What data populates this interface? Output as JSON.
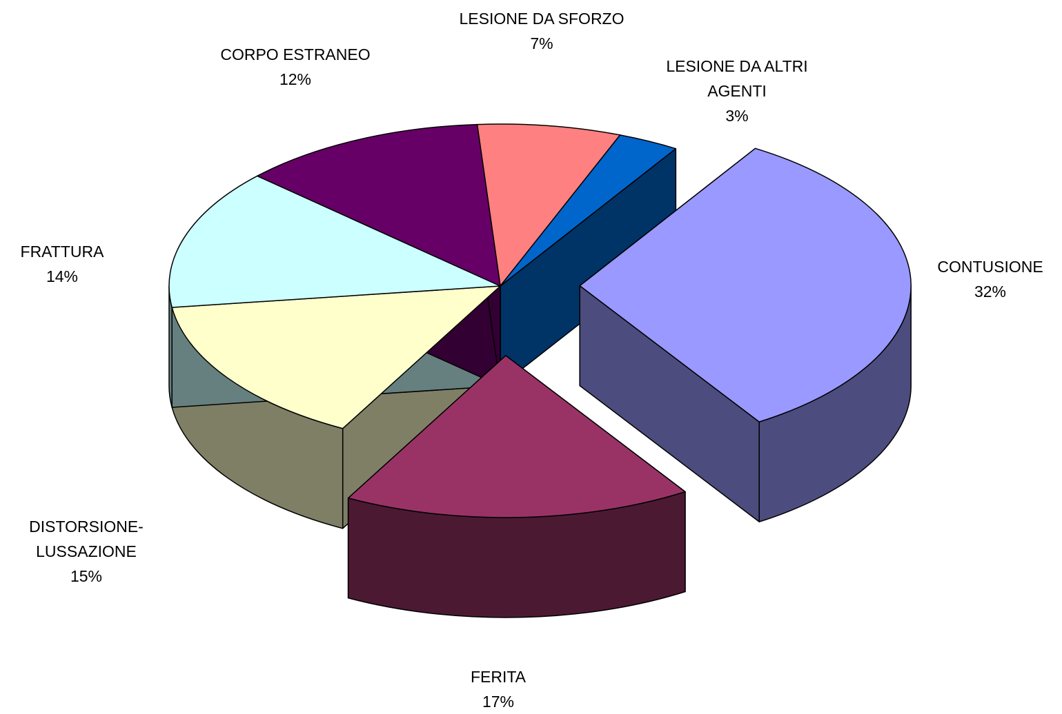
{
  "chart_data": {
    "type": "pie",
    "categories": [
      "LESIONE DA SFORZO",
      "LESIONE DA ALTRI AGENTI",
      "CONTUSIONE",
      "FERITA",
      "DISTORSIONE-LUSSAZIONE",
      "FRATTURA",
      "CORPO ESTRANEO"
    ],
    "values": [
      7,
      3,
      32,
      17,
      15,
      14,
      12
    ],
    "value_labels": [
      "7%",
      "3%",
      "32%",
      "17%",
      "15%",
      "14%",
      "12%"
    ],
    "colors": [
      "#ff8080",
      "#0066cc",
      "#9999ff",
      "#993366",
      "#ffffcc",
      "#ccffff",
      "#660066"
    ]
  }
}
